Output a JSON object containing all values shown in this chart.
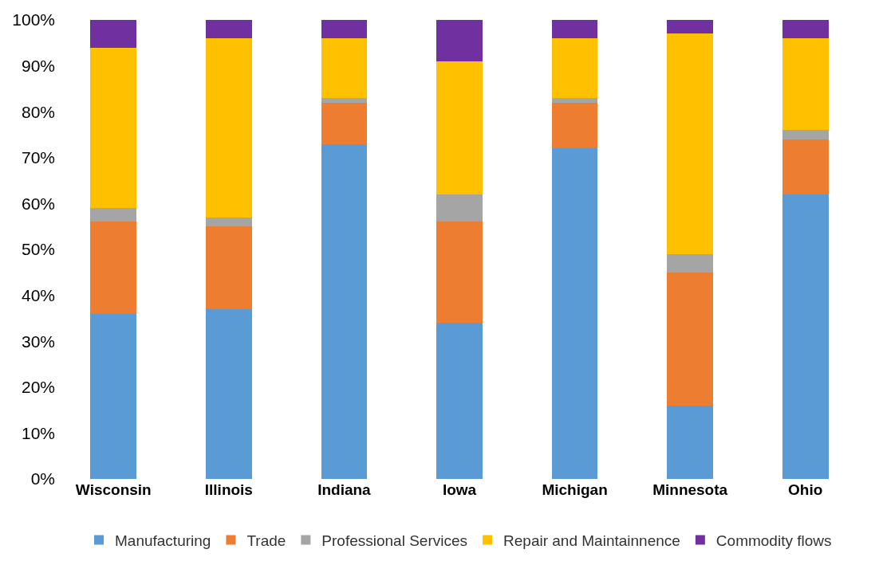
{
  "chart_data": {
    "type": "bar",
    "stacked": true,
    "categories": [
      "Wisconsin",
      "Illinois",
      "Indiana",
      "Iowa",
      "Michigan",
      "Minnesota",
      "Ohio"
    ],
    "series": [
      {
        "name": "Manufacturing",
        "color": "#5b9bd5",
        "values": [
          36,
          37,
          73,
          34,
          72,
          16,
          62
        ]
      },
      {
        "name": "Trade",
        "color": "#ed7d31",
        "values": [
          20,
          18,
          9,
          22,
          10,
          29,
          12
        ]
      },
      {
        "name": "Professional Services",
        "color": "#a5a5a5",
        "values": [
          3,
          2,
          1,
          6,
          1,
          4,
          2
        ]
      },
      {
        "name": "Repair and Maintainnence",
        "color": "#ffc000",
        "values": [
          35,
          39,
          13,
          29,
          13,
          48,
          20
        ]
      },
      {
        "name": "Commodity flows",
        "color": "#7030a0",
        "values": [
          6,
          4,
          4,
          9,
          4,
          3,
          4
        ]
      }
    ],
    "ylim": [
      0,
      100
    ],
    "yticks": [
      {
        "value": 0,
        "label": "0%"
      },
      {
        "value": 10,
        "label": "10%"
      },
      {
        "value": 20,
        "label": "20%"
      },
      {
        "value": 30,
        "label": "30%"
      },
      {
        "value": 40,
        "label": "40%"
      },
      {
        "value": 50,
        "label": "50%"
      },
      {
        "value": 60,
        "label": "60%"
      },
      {
        "value": 70,
        "label": "70%"
      },
      {
        "value": 80,
        "label": "80%"
      },
      {
        "value": 90,
        "label": "90%"
      },
      {
        "value": 100,
        "label": "100%"
      }
    ],
    "grid": false,
    "legend": "bottom"
  }
}
